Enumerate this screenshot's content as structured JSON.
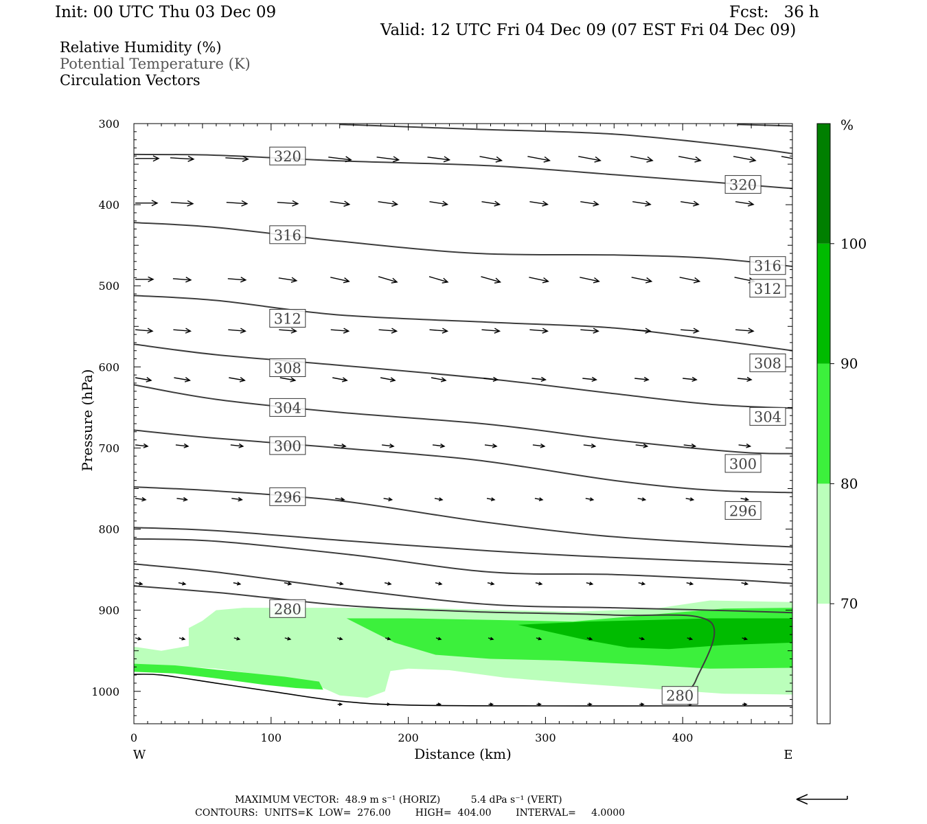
{
  "header": {
    "init": "Init: 00 UTC Thu 03 Dec 09",
    "fcst": "Fcst:   36 h",
    "valid": "Valid: 12 UTC Fri 04 Dec 09 (07 EST Fri 04 Dec 09)"
  },
  "legend_text": {
    "rh": "Relative Humidity (%)",
    "theta": "Potential Temperature (K)",
    "vectors": "Circulation Vectors"
  },
  "footer": {
    "max_vector": "MAXIMUM VECTOR:  48.9 m s⁻¹ (HORIZ)          5.4 dPa s⁻¹ (VERT)",
    "contours": "CONTOURS:  UNITS=K  LOW=  276.00        HIGH=  404.00        INTERVAL=     4.0000"
  },
  "colors": {
    "rh70": "#bbffbb",
    "rh80": "#3cf03c",
    "rh90": "#00bb00",
    "rh100": "#007f00",
    "contour": "#3c3c3c",
    "vector": "#000000"
  },
  "chart_data": {
    "type": "cross-section",
    "xlabel": "Distance (km)",
    "ylabel": "Pressure (hPa)",
    "x_end_labels": {
      "left": "W",
      "right": "E"
    },
    "xlim": [
      0,
      480
    ],
    "ylim": [
      1040,
      300
    ],
    "x_ticks": [
      0,
      100,
      200,
      300,
      400
    ],
    "y_ticks": [
      300,
      400,
      500,
      600,
      700,
      800,
      900,
      1000
    ],
    "colorbar": {
      "unit": "%",
      "levels": [
        70,
        80,
        90,
        100
      ],
      "colors": [
        "#ffffff",
        "#bbffbb",
        "#3cf03c",
        "#00bb00",
        "#007f00"
      ]
    },
    "theta_contours": [
      {
        "level": 280,
        "points": [
          [
            0,
            870
          ],
          [
            60,
            878
          ],
          [
            100,
            885
          ],
          [
            160,
            895
          ],
          [
            250,
            902
          ],
          [
            350,
            906
          ],
          [
            420,
            914
          ],
          [
            410,
            985
          ],
          [
            400,
            1003
          ]
        ],
        "labels": [
          [
            112,
            898
          ],
          [
            398,
            1005
          ]
        ]
      },
      {
        "level": 284,
        "points": [
          [
            0,
            843
          ],
          [
            60,
            853
          ],
          [
            160,
            875
          ],
          [
            260,
            893
          ],
          [
            350,
            897
          ],
          [
            420,
            900
          ],
          [
            480,
            903
          ]
        ],
        "labels": []
      },
      {
        "level": 288,
        "points": [
          [
            0,
            812
          ],
          [
            60,
            815
          ],
          [
            160,
            832
          ],
          [
            260,
            853
          ],
          [
            350,
            856
          ],
          [
            430,
            862
          ],
          [
            480,
            867
          ]
        ],
        "labels": []
      },
      {
        "level": 292,
        "points": [
          [
            0,
            798
          ],
          [
            60,
            802
          ],
          [
            160,
            815
          ],
          [
            260,
            827
          ],
          [
            350,
            835
          ],
          [
            420,
            840
          ],
          [
            480,
            844
          ]
        ],
        "labels": []
      },
      {
        "level": 296,
        "points": [
          [
            0,
            748
          ],
          [
            60,
            753
          ],
          [
            150,
            765
          ],
          [
            250,
            790
          ],
          [
            340,
            808
          ],
          [
            420,
            817
          ],
          [
            480,
            822
          ]
        ],
        "labels": [
          [
            112,
            760
          ],
          [
            444,
            777
          ]
        ]
      },
      {
        "level": 300,
        "points": [
          [
            0,
            678
          ],
          [
            60,
            688
          ],
          [
            150,
            700
          ],
          [
            250,
            715
          ],
          [
            350,
            740
          ],
          [
            420,
            752
          ],
          [
            480,
            755
          ]
        ],
        "labels": [
          [
            112,
            697
          ],
          [
            444,
            719
          ]
        ]
      },
      {
        "level": 304,
        "points": [
          [
            0,
            622
          ],
          [
            60,
            640
          ],
          [
            150,
            656
          ],
          [
            260,
            671
          ],
          [
            350,
            690
          ],
          [
            440,
            705
          ],
          [
            480,
            707
          ]
        ],
        "labels": [
          [
            112,
            650
          ],
          [
            462,
            661
          ]
        ]
      },
      {
        "level": 308,
        "points": [
          [
            0,
            572
          ],
          [
            60,
            585
          ],
          [
            150,
            598
          ],
          [
            260,
            615
          ],
          [
            350,
            633
          ],
          [
            420,
            646
          ],
          [
            480,
            651
          ]
        ],
        "labels": [
          [
            112,
            601
          ],
          [
            462,
            595
          ]
        ]
      },
      {
        "level": 312,
        "points": [
          [
            0,
            512
          ],
          [
            60,
            518
          ],
          [
            150,
            536
          ],
          [
            260,
            545
          ],
          [
            350,
            552
          ],
          [
            420,
            566
          ],
          [
            480,
            580
          ]
        ],
        "labels": [
          [
            112,
            540
          ],
          [
            462,
            503
          ]
        ]
      },
      {
        "level": 316,
        "points": [
          [
            0,
            422
          ],
          [
            60,
            428
          ],
          [
            150,
            445
          ],
          [
            250,
            460
          ],
          [
            350,
            462
          ],
          [
            420,
            466
          ],
          [
            480,
            476
          ]
        ],
        "labels": [
          [
            112,
            437
          ],
          [
            462,
            475
          ]
        ]
      },
      {
        "level": 320,
        "points": [
          [
            0,
            338
          ],
          [
            60,
            339
          ],
          [
            150,
            346
          ],
          [
            260,
            352
          ],
          [
            350,
            363
          ],
          [
            420,
            372
          ],
          [
            480,
            380
          ]
        ],
        "labels": [
          [
            112,
            340
          ],
          [
            444,
            375
          ]
        ]
      },
      {
        "level": 324,
        "points": [
          [
            150,
            301
          ],
          [
            250,
            307
          ],
          [
            350,
            313
          ],
          [
            440,
            328
          ],
          [
            480,
            337
          ]
        ],
        "labels": []
      },
      {
        "level": 328,
        "points": [
          [
            440,
            301
          ],
          [
            480,
            303
          ]
        ],
        "labels": []
      }
    ],
    "rh_field": [
      {
        "range": "70-80",
        "polygon": [
          [
            0,
            945
          ],
          [
            20,
            950
          ],
          [
            40,
            944
          ],
          [
            40,
            922
          ],
          [
            50,
            913
          ],
          [
            60,
            900
          ],
          [
            80,
            897
          ],
          [
            160,
            897
          ],
          [
            200,
            897
          ],
          [
            320,
            902
          ],
          [
            380,
            898
          ],
          [
            420,
            888
          ],
          [
            480,
            890
          ],
          [
            480,
            1004
          ],
          [
            430,
            1003
          ],
          [
            370,
            996
          ],
          [
            320,
            990
          ],
          [
            270,
            983
          ],
          [
            230,
            974
          ],
          [
            200,
            972
          ],
          [
            187,
            975
          ],
          [
            183,
            1000
          ],
          [
            170,
            1008
          ],
          [
            150,
            1005
          ],
          [
            130,
            990
          ],
          [
            95,
            980
          ],
          [
            60,
            972
          ],
          [
            20,
            968
          ],
          [
            0,
            967
          ]
        ]
      },
      {
        "range": "80-90",
        "polygon": [
          [
            155,
            910
          ],
          [
            200,
            910
          ],
          [
            260,
            912
          ],
          [
            320,
            914
          ],
          [
            380,
            905
          ],
          [
            430,
            898
          ],
          [
            480,
            897
          ],
          [
            480,
            971
          ],
          [
            420,
            972
          ],
          [
            370,
            967
          ],
          [
            310,
            962
          ],
          [
            260,
            960
          ],
          [
            220,
            955
          ],
          [
            190,
            940
          ],
          [
            170,
            923
          ]
        ]
      },
      {
        "range": "80-90",
        "polygon": [
          [
            0,
            966
          ],
          [
            30,
            968
          ],
          [
            70,
            975
          ],
          [
            110,
            982
          ],
          [
            135,
            988
          ],
          [
            138,
            998
          ],
          [
            118,
            996
          ],
          [
            95,
            992
          ],
          [
            60,
            984
          ],
          [
            30,
            978
          ],
          [
            0,
            976
          ]
        ]
      },
      {
        "range": "90-100",
        "polygon": [
          [
            280,
            918
          ],
          [
            330,
            914
          ],
          [
            380,
            912
          ],
          [
            420,
            910
          ],
          [
            480,
            910
          ],
          [
            480,
            940
          ],
          [
            430,
            943
          ],
          [
            390,
            948
          ],
          [
            360,
            946
          ],
          [
            330,
            937
          ]
        ]
      }
    ],
    "surface_line": [
      [
        0,
        979
      ],
      [
        20,
        980
      ],
      [
        60,
        990
      ],
      [
        100,
        1000
      ],
      [
        150,
        1012
      ],
      [
        200,
        1017
      ],
      [
        300,
        1018
      ],
      [
        400,
        1018
      ],
      [
        480,
        1018
      ]
    ],
    "vectors": [
      {
        "p": 343,
        "x": [
          0,
          35,
          75,
          112,
          150,
          185,
          222,
          260,
          295,
          332,
          370,
          405,
          445,
          480
        ],
        "len": [
          34,
          34,
          33,
          33,
          33,
          32,
          32,
          32,
          32,
          32,
          32,
          32,
          32,
          32
        ],
        "dp": [
          0,
          1,
          1,
          1,
          2,
          2,
          2,
          3,
          3,
          3,
          3,
          3,
          3,
          3
        ]
      },
      {
        "p": 398,
        "x": [
          0,
          35,
          75,
          112,
          150,
          185,
          222,
          260,
          295,
          332,
          370,
          405,
          445
        ],
        "len": [
          32,
          32,
          30,
          30,
          28,
          28,
          26,
          26,
          26,
          26,
          26,
          26,
          26
        ],
        "dp": [
          0,
          1,
          1,
          1,
          2,
          2,
          2,
          2,
          2,
          2,
          2,
          2,
          2
        ]
      },
      {
        "p": 492,
        "x": [
          0,
          35,
          75,
          112,
          150,
          185,
          222,
          260,
          295,
          332,
          370,
          405,
          445
        ],
        "len": [
          26,
          26,
          26,
          26,
          27,
          27,
          27,
          28,
          28,
          28,
          29,
          29,
          29
        ],
        "dp": [
          0,
          1,
          1,
          2,
          3,
          4,
          4,
          4,
          3,
          3,
          3,
          3,
          3
        ]
      },
      {
        "p": 555,
        "x": [
          0,
          35,
          75,
          112,
          150,
          185,
          222,
          260,
          295,
          332,
          370,
          405,
          445
        ],
        "len": [
          25,
          25,
          25,
          25,
          26,
          26,
          26,
          26,
          26,
          26,
          26,
          26,
          26
        ],
        "dp": [
          1,
          1,
          1,
          1,
          1,
          1,
          1,
          1,
          1,
          1,
          1,
          1,
          1
        ]
      },
      {
        "p": 615,
        "x": [
          0,
          35,
          75,
          112,
          150,
          185,
          222,
          260,
          295,
          332,
          370,
          405,
          445
        ],
        "len": [
          23,
          23,
          23,
          22,
          21,
          21,
          21,
          20,
          20,
          20,
          20,
          20,
          20
        ],
        "dp": [
          2,
          2,
          2,
          2,
          2,
          2,
          2,
          1,
          1,
          1,
          1,
          1,
          1
        ]
      },
      {
        "p": 697,
        "x": [
          0,
          35,
          75,
          112,
          150,
          185,
          222,
          260,
          295,
          332,
          370,
          405,
          445
        ],
        "len": [
          18,
          18,
          18,
          18,
          17,
          17,
          17,
          17,
          17,
          17,
          17,
          17,
          17
        ],
        "dp": [
          1,
          1,
          1,
          1,
          1,
          1,
          1,
          1,
          1,
          1,
          1,
          1,
          1
        ]
      },
      {
        "p": 763,
        "x": [
          0,
          35,
          75,
          112,
          150,
          185,
          222,
          260,
          295,
          332,
          370,
          405,
          445
        ],
        "len": [
          15,
          15,
          15,
          14,
          13,
          12,
          11,
          11,
          11,
          11,
          11,
          11,
          11
        ],
        "dp": [
          1,
          1,
          1,
          1,
          1,
          1,
          1,
          1,
          1,
          1,
          1,
          1,
          1
        ]
      },
      {
        "p": 867,
        "x": [
          0,
          35,
          75,
          112,
          150,
          185,
          222,
          260,
          295,
          332,
          370,
          405,
          445
        ],
        "len": [
          10,
          10,
          10,
          10,
          9,
          9,
          9,
          9,
          9,
          9,
          9,
          9,
          9
        ],
        "dp": [
          1,
          1,
          1,
          1,
          1,
          1,
          1,
          1,
          1,
          1,
          1,
          1,
          1
        ]
      },
      {
        "p": 935,
        "x": [
          0,
          35,
          75,
          112,
          150,
          185,
          222,
          260,
          295,
          332,
          370,
          405,
          445
        ],
        "len": [
          8,
          8,
          8,
          8,
          7,
          7,
          7,
          7,
          7,
          7,
          7,
          7,
          7
        ],
        "dp": [
          1,
          1,
          1,
          1,
          1,
          1,
          1,
          1,
          1,
          1,
          1,
          1,
          1
        ]
      },
      {
        "p": 1016,
        "x": [
          150,
          185,
          222,
          260,
          295,
          332,
          370,
          405,
          445
        ],
        "len": [
          6,
          6,
          6,
          6,
          6,
          6,
          6,
          6,
          6
        ],
        "dp": [
          0,
          0,
          0,
          0,
          0,
          0,
          0,
          0,
          0
        ]
      }
    ]
  }
}
